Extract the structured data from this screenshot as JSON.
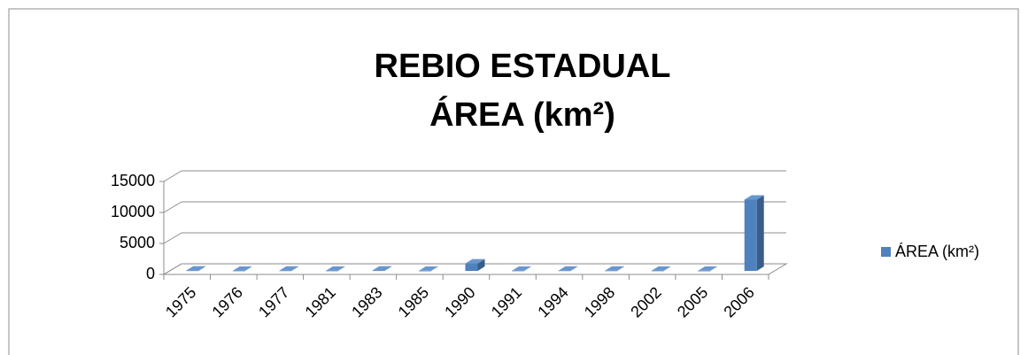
{
  "chart_data": {
    "type": "bar3d",
    "title_lines": [
      "REBIO ESTADUAL",
      "ÁREA (km²)"
    ],
    "categories": [
      "1975",
      "1976",
      "1977",
      "1981",
      "1983",
      "1985",
      "1990",
      "1991",
      "1994",
      "1998",
      "2002",
      "2005",
      "2006"
    ],
    "series": [
      {
        "name": "ÁREA (km²)",
        "color": "#4f81bd",
        "values": [
          50,
          20,
          40,
          20,
          60,
          10,
          1200,
          20,
          40,
          30,
          20,
          10,
          11500
        ]
      }
    ],
    "ylim": [
      0,
      15000
    ],
    "yticks": [
      0,
      5000,
      10000,
      15000
    ],
    "grid": true,
    "legend": "right"
  }
}
